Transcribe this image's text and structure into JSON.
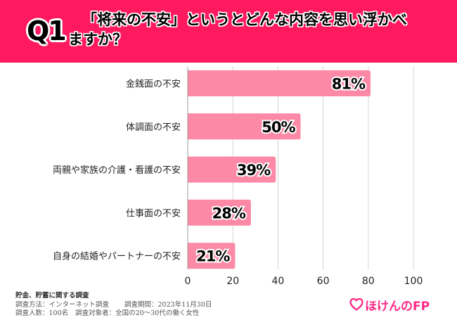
{
  "header": {
    "question_number": "Q1",
    "question_line1": "「将来の不安」というとどんな内容を思い浮かべ",
    "question_line2": "ますか？",
    "background_color": "#ff1a60"
  },
  "chart_data": {
    "type": "bar",
    "orientation": "horizontal",
    "title": "「将来の不安」というとどんな内容を思い浮かべますか？",
    "categories": [
      "金銭面の不安",
      "体調面の不安",
      "両親や家族の介護・看護の不安",
      "仕事面の不安",
      "自身の結婚やパートナーの不安"
    ],
    "values": [
      81,
      50,
      39,
      28,
      21
    ],
    "value_labels": [
      "81%",
      "50%",
      "39%",
      "28%",
      "21%"
    ],
    "unit": "%",
    "xlim": [
      0,
      100
    ],
    "x_ticks": [
      0,
      20,
      40,
      60,
      80,
      100
    ],
    "x_tick_labels": [
      "0",
      "20",
      "40",
      "60",
      "80",
      "100"
    ],
    "grid": true,
    "bar_color": "#fc89a6",
    "xlabel": "",
    "ylabel": ""
  },
  "footer": {
    "survey_title": "貯金、貯蓄に関する調査",
    "method": "調査方法：インターネット調査",
    "period": "調査期間：2023年11月30日",
    "sample_size": "調査人数：100名",
    "target": "調査対象者：全国の20～30代の働く女性"
  },
  "logo": {
    "text": "ほけんのFP",
    "icon": "heart-icon",
    "color": "#ff2a86"
  }
}
